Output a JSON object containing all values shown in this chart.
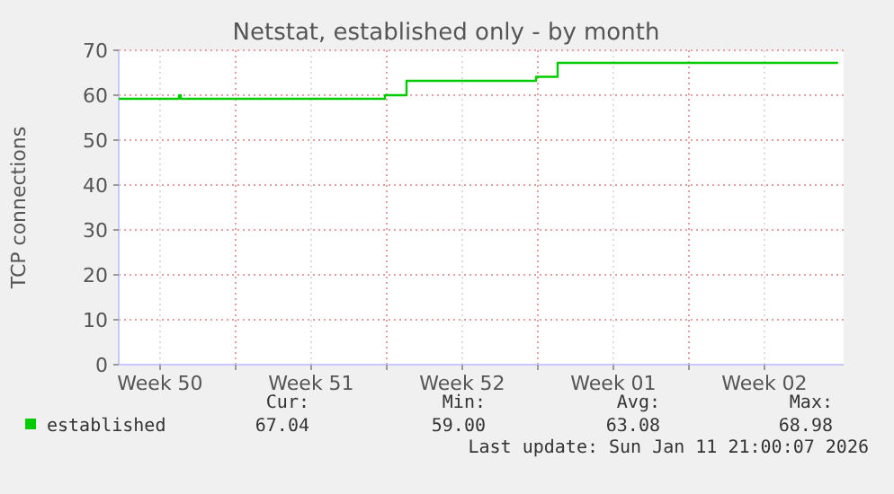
{
  "chart_data": {
    "type": "step",
    "title": "Netstat, established only - by month",
    "ylabel": "TCP connections",
    "x": [
      "2025-12-09T14:00",
      "2025-12-12T09:00",
      "2025-12-12T11:00",
      "2025-12-21T22:00",
      "2025-12-22T22:00",
      "2025-12-28T22:00",
      "2025-12-29T22:00",
      "2026-01-11T21:00"
    ],
    "series": [
      {
        "name": "established",
        "color": "#00cc00",
        "values": [
          59.2,
          60,
          59.2,
          60,
          63.2,
          64.1,
          67.2,
          67.04
        ]
      }
    ],
    "xlim": [
      "2025-12-09T14:00",
      "2026-01-12T04:00"
    ],
    "xticks": [
      {
        "value": "2025-12-11T12:00",
        "label": "Week 50"
      },
      {
        "value": "2025-12-15T00:00",
        "label": null
      },
      {
        "value": "2025-12-18T12:00",
        "label": "Week 51"
      },
      {
        "value": "2025-12-22T00:00",
        "label": null
      },
      {
        "value": "2025-12-25T12:00",
        "label": "Week 52"
      },
      {
        "value": "2025-12-29T00:00",
        "label": null
      },
      {
        "value": "2026-01-01T12:00",
        "label": "Week 01"
      },
      {
        "value": "2026-01-05T00:00",
        "label": null
      },
      {
        "value": "2026-01-08T12:00",
        "label": "Week 02"
      }
    ],
    "ylim": [
      0,
      70
    ],
    "yticks": [
      0,
      10,
      20,
      30,
      40,
      50,
      60,
      70
    ],
    "grid": true,
    "legend": "bottom left",
    "annotations": [
      "Cur:",
      "Min:",
      "Avg:",
      "Max:",
      "67.04",
      "59.00",
      "63.08",
      "68.98",
      "Last update: Sun Jan 11 21:00:07 2026"
    ]
  }
}
